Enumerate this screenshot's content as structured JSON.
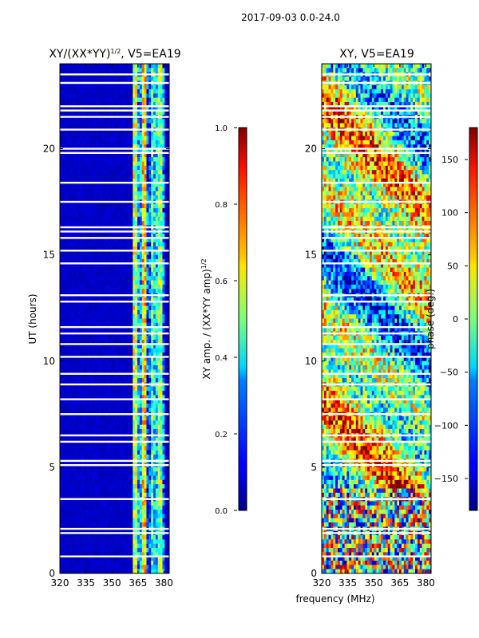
{
  "figure": {
    "suptitle": "2017-09-03 0.0-24.0",
    "shared_xlabel": "frequency (MHz)"
  },
  "chart_data": [
    {
      "type": "heatmap",
      "title": "XY/(XX*YY)",
      "title_sup": "1/2",
      "title_suffix": ", V5=EA19",
      "xlabel": "",
      "ylabel": "UT (hours)",
      "xlim": [
        320,
        383
      ],
      "ylim": [
        0,
        24
      ],
      "xticks": [
        320,
        335,
        350,
        365,
        380
      ],
      "yticks": [
        0,
        5,
        10,
        15,
        20
      ],
      "colorbar": {
        "label": "XY amp. / (XX*YY amp)",
        "label_sup": "1/2",
        "range": [
          0.0,
          1.0
        ],
        "ticks": [
          "0.0",
          "0.2",
          "0.4",
          "0.6",
          "0.8",
          "1.0"
        ],
        "tick_values": [
          0.0,
          0.2,
          0.4,
          0.6,
          0.8,
          1.0
        ]
      },
      "background_value": 0.05,
      "features": [
        {
          "freq_range": [
            362,
            365
          ],
          "time_range": [
            0.2,
            23.8
          ],
          "value": 0.55
        },
        {
          "freq_range": [
            365,
            367
          ],
          "time_range": [
            0.2,
            23.8
          ],
          "value": 0.3
        },
        {
          "freq_range": [
            367,
            370
          ],
          "time_range": [
            0.2,
            23.8
          ],
          "value": 0.65
        },
        {
          "freq_range": [
            370,
            372
          ],
          "time_range": [
            0.2,
            23.8
          ],
          "value": 0.2
        },
        {
          "freq_range": [
            372,
            374
          ],
          "time_range": [
            0.2,
            23.8
          ],
          "value": 0.45
        },
        {
          "freq_range": [
            374,
            377
          ],
          "time_range": [
            0.2,
            23.8
          ],
          "value": 0.35
        },
        {
          "freq_range": [
            377,
            379
          ],
          "time_range": [
            0.2,
            23.8
          ],
          "value": 0.5
        },
        {
          "freq_range": [
            379,
            381
          ],
          "time_range": [
            0.2,
            23.8
          ],
          "value": 0.25
        }
      ],
      "gaps_hours": [
        0.8,
        1.9,
        2.1,
        3.5,
        5.1,
        5.3,
        6.2,
        6.5,
        7.5,
        8.2,
        8.9,
        9.4,
        10.2,
        10.8,
        11.3,
        11.6,
        12.8,
        13.1,
        14.6,
        15.2,
        15.8,
        16.1,
        16.3,
        17.5,
        18.4,
        19.8,
        20.0,
        20.9,
        21.5,
        21.8,
        22.0,
        23.1,
        23.5
      ]
    },
    {
      "type": "heatmap",
      "title": "XY, V5=EA19",
      "xlabel": "frequency (MHz)",
      "ylabel": "",
      "xlim": [
        320,
        383
      ],
      "ylim": [
        0,
        24
      ],
      "xticks": [
        320,
        335,
        350,
        365,
        380
      ],
      "yticks": [
        0,
        5,
        10,
        15,
        20
      ],
      "colorbar": {
        "label": "phase (deg.)",
        "range": [
          -180,
          180
        ],
        "ticks": [
          "−150",
          "−100",
          "−50",
          "0",
          "50",
          "100",
          "150"
        ],
        "tick_values": [
          -150,
          -100,
          -50,
          0,
          50,
          100,
          150
        ]
      },
      "gaps_hours": [
        0.8,
        1.9,
        2.1,
        3.5,
        5.1,
        5.3,
        6.2,
        6.5,
        7.5,
        8.2,
        8.9,
        9.4,
        10.2,
        10.8,
        11.3,
        11.6,
        12.8,
        13.1,
        14.6,
        15.2,
        15.8,
        16.1,
        16.3,
        17.5,
        18.4,
        19.8,
        20.0,
        20.9,
        21.5,
        21.8,
        22.0,
        23.1,
        23.5
      ]
    }
  ]
}
